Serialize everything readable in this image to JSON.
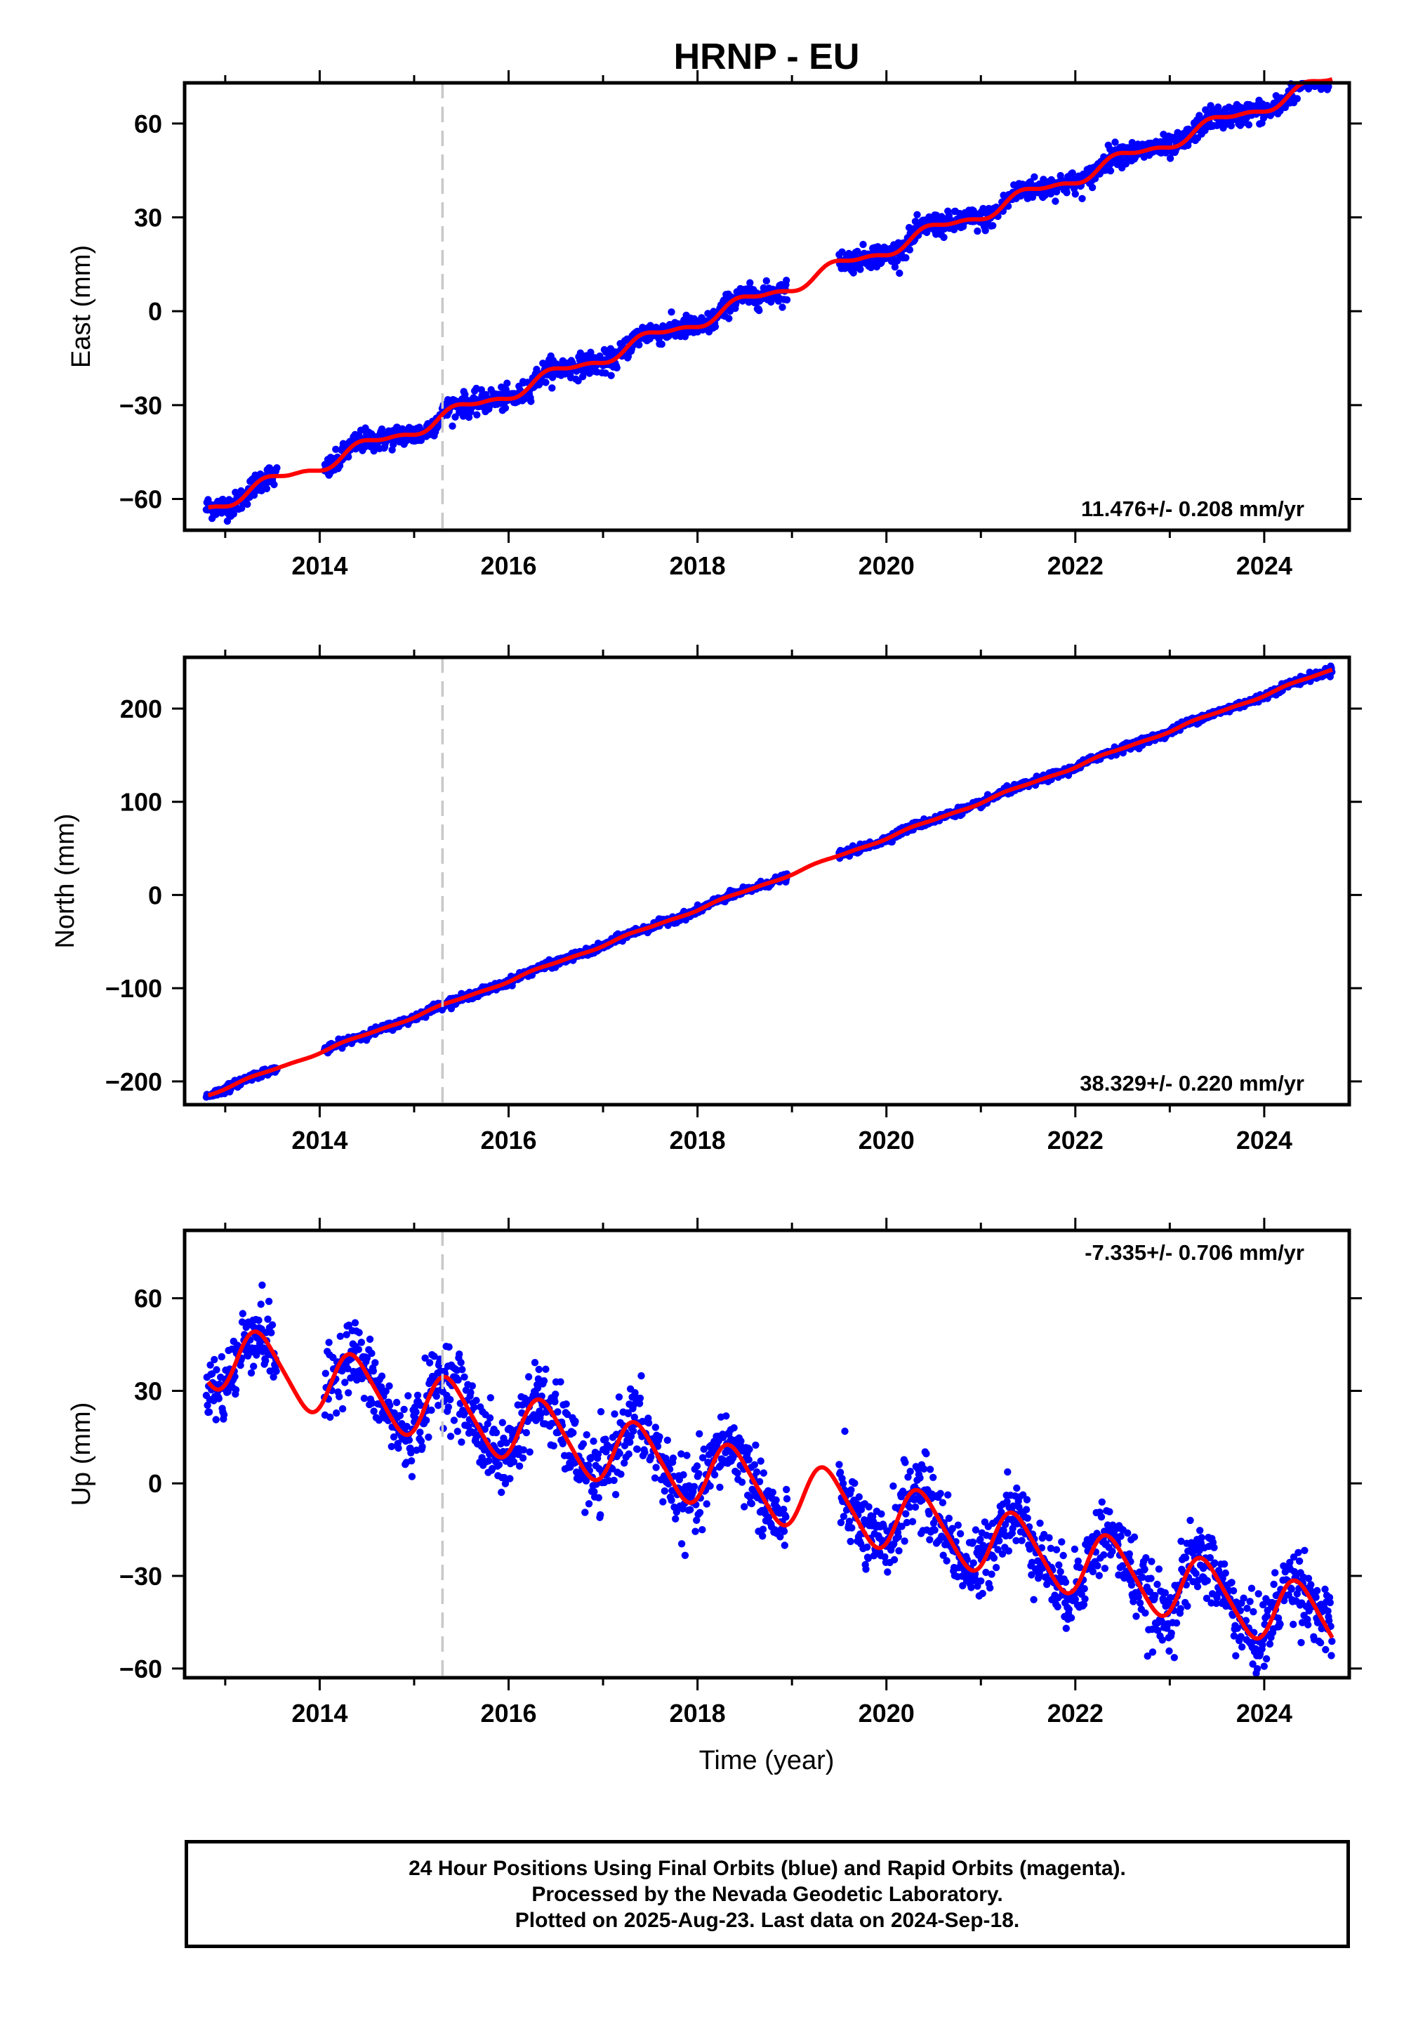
{
  "title": "HRNP - EU",
  "xlabel": "Time (year)",
  "footer": {
    "line1": "24 Hour Positions Using Final Orbits (blue) and Rapid Orbits (magenta).",
    "line2": "Processed by the Nevada Geodetic Laboratory.",
    "line3": "Plotted on 2025-Aug-23. Last data on 2024-Sep-18."
  },
  "colors": {
    "data": "#0000ff",
    "model": "#ff0000",
    "event_line": "#c8c8c8"
  },
  "chart_data": [
    {
      "type": "scatter",
      "name": "east",
      "ylabel": "East (mm)",
      "rate_text": "11.476+/- 0.208 mm/yr",
      "xlim": [
        2012.57,
        2024.9
      ],
      "ylim": [
        -70,
        73
      ],
      "xticks": [
        2014,
        2016,
        2018,
        2020,
        2022,
        2024
      ],
      "yticks": [
        -60,
        -30,
        0,
        30,
        60
      ],
      "event_x": 2015.3,
      "rate": 11.476,
      "offset": -62.5,
      "annual_amp": 2.0,
      "semiannual_amp": 0.8,
      "phase": 0.25,
      "noise": 1.8,
      "data_segments": [
        [
          2012.8,
          2013.55
        ],
        [
          2014.05,
          2018.95
        ],
        [
          2019.5,
          2024.72
        ]
      ],
      "model_range": [
        2012.82,
        2024.72
      ]
    },
    {
      "type": "scatter",
      "name": "north",
      "ylabel": "North (mm)",
      "rate_text": "38.329+/- 0.220 mm/yr",
      "xlim": [
        2012.57,
        2024.9
      ],
      "ylim": [
        -225,
        255
      ],
      "xticks": [
        2014,
        2016,
        2018,
        2020,
        2022,
        2024
      ],
      "yticks": [
        -200,
        -100,
        0,
        100,
        200
      ],
      "event_x": 2015.3,
      "rate": 38.329,
      "offset": -214,
      "annual_amp": 1.2,
      "semiannual_amp": 0.5,
      "phase": 0.1,
      "noise": 2.0,
      "data_segments": [
        [
          2012.8,
          2013.55
        ],
        [
          2014.05,
          2018.95
        ],
        [
          2019.5,
          2024.72
        ]
      ],
      "model_range": [
        2012.82,
        2024.72
      ]
    },
    {
      "type": "scatter",
      "name": "up",
      "ylabel": "Up (mm)",
      "rate_text": "-7.335+/- 0.706 mm/yr",
      "xlim": [
        2012.57,
        2024.9
      ],
      "ylim": [
        -63,
        82
      ],
      "xticks": [
        2014,
        2016,
        2018,
        2020,
        2022,
        2024
      ],
      "yticks": [
        -60,
        -30,
        0,
        30,
        60
      ],
      "event_x": 2015.3,
      "rate": -7.335,
      "offset": 42,
      "annual_amp": 10.5,
      "semiannual_amp": 1.5,
      "phase": 0.12,
      "noise": 6.0,
      "data_segments": [
        [
          2012.8,
          2013.55
        ],
        [
          2014.05,
          2018.95
        ],
        [
          2019.5,
          2024.72
        ]
      ],
      "model_range": [
        2012.82,
        2024.72
      ]
    }
  ]
}
